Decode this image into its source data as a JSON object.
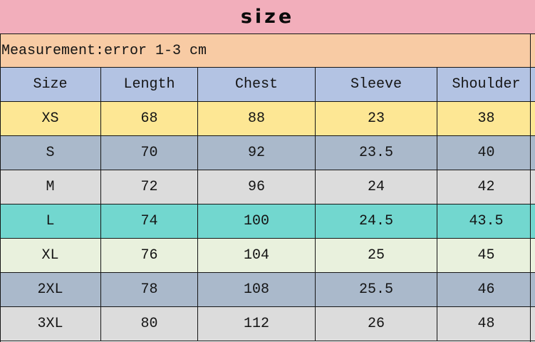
{
  "title": "size",
  "note": "Measurement:error 1-3 cm",
  "colors": {
    "title_bg": "#f2aebb",
    "note_bg": "#f8cba4",
    "header_bg": "#b3c3e3",
    "border": "#161616",
    "row_yellow": "#fde794",
    "row_bluegray": "#aab9cb",
    "row_gray": "#dcdcdc",
    "row_teal": "#72d7cf",
    "row_mint": "#e9f1dd"
  },
  "table": {
    "headers": [
      "Size",
      "Length",
      "Chest",
      "Sleeve",
      "Shoulder"
    ],
    "rows": [
      {
        "label": "XS",
        "values": [
          "68",
          "88",
          "23",
          "38"
        ],
        "bg": "#fde794"
      },
      {
        "label": "S",
        "values": [
          "70",
          "92",
          "23.5",
          "40"
        ],
        "bg": "#aab9cb"
      },
      {
        "label": "M",
        "values": [
          "72",
          "96",
          "24",
          "42"
        ],
        "bg": "#dcdcdc"
      },
      {
        "label": "L",
        "values": [
          "74",
          "100",
          "24.5",
          "43.5"
        ],
        "bg": "#72d7cf"
      },
      {
        "label": "XL",
        "values": [
          "76",
          "104",
          "25",
          "45"
        ],
        "bg": "#e9f1dd"
      },
      {
        "label": "2XL",
        "values": [
          "78",
          "108",
          "25.5",
          "46"
        ],
        "bg": "#aab9cb"
      },
      {
        "label": "3XL",
        "values": [
          "80",
          "112",
          "26",
          "48"
        ],
        "bg": "#dcdcdc"
      }
    ]
  }
}
